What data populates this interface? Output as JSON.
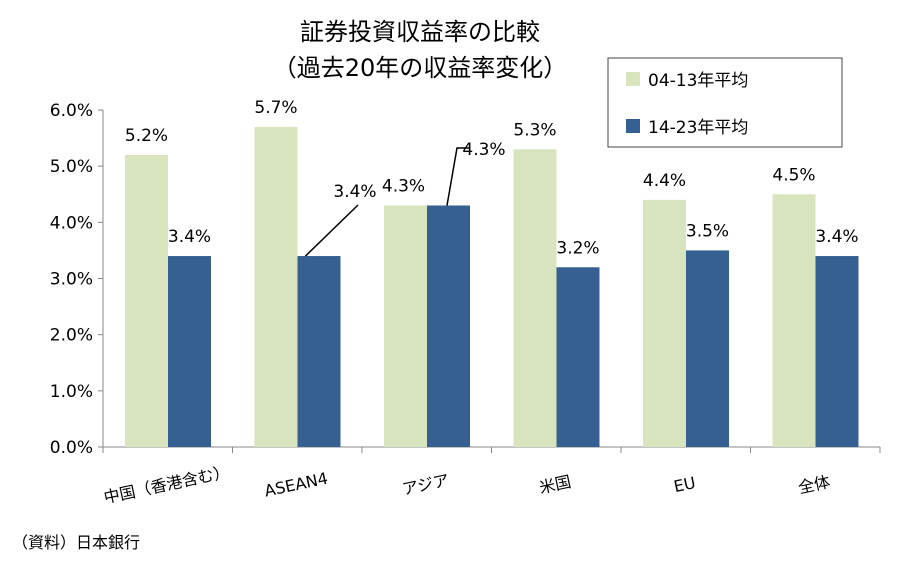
{
  "chart_data": {
    "type": "bar",
    "title": "証券投資収益率の比較",
    "subtitle": "（過去20年の収益率変化）",
    "categories": [
      "中国（香港含む）",
      "ASEAN4",
      "アジア",
      "米国",
      "EU",
      "全体"
    ],
    "series": [
      {
        "name": "04-13年平均",
        "color": "#d7e4bd",
        "values": [
          5.2,
          5.7,
          4.3,
          5.3,
          4.4,
          4.5
        ],
        "labels": [
          "5.2%",
          "5.7%",
          "4.3%",
          "5.3%",
          "4.4%",
          "4.5%"
        ]
      },
      {
        "name": "14-23年平均",
        "color": "#376092",
        "values": [
          3.4,
          3.4,
          4.3,
          3.2,
          3.5,
          3.4
        ],
        "labels": [
          "3.4%",
          "3.4%",
          "4.3%",
          "3.2%",
          "3.5%",
          "3.4%"
        ]
      }
    ],
    "ylim": [
      0,
      6
    ],
    "yticks": [
      "0.0%",
      "1.0%",
      "2.0%",
      "3.0%",
      "4.0%",
      "5.0%",
      "6.0%"
    ],
    "xlabel": "",
    "ylabel": "",
    "grid": false,
    "legend": "top-right"
  },
  "source": "（資料）日本銀行"
}
